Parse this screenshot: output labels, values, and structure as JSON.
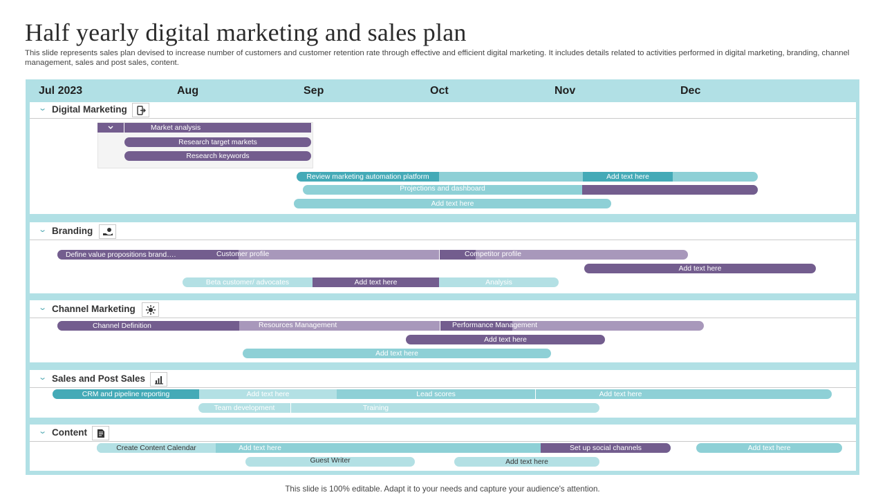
{
  "title": "Half yearly digital marketing and sales plan",
  "description": "This slide represents sales plan devised to increase number of customers and customer retention rate through effective and efficient digital marketing. It includes details related to activities performed in digital marketing, branding, channel management, sales and post sales, content.",
  "months": [
    "Jul 2023",
    "Aug",
    "Sep",
    "Oct",
    "Nov",
    "Dec"
  ],
  "sections": {
    "digital": {
      "title": "Digital Marketing",
      "icon": "phone-exit-icon",
      "market_analysis": "Market analysis",
      "research_target_markets": "Research target markets",
      "research_keywords": "Research keywords",
      "review_platform": "Review marketing automation platform",
      "add_text_1": "Add text here",
      "projections": "Projections and dashboard",
      "add_text_2": "Add text here"
    },
    "branding": {
      "title": "Branding",
      "icon": "hand-money-icon",
      "define_value": "Define value propositions brand….",
      "customer_profile": "Customer profile",
      "competitor_profile": "Competitor profile",
      "add_text_1": "Add text here",
      "beta_customer": "Beta customer/ advocates",
      "add_text_2": "Add text here",
      "analysis": "Analysis"
    },
    "channel": {
      "title": "Channel Marketing",
      "icon": "sun-gear-icon",
      "channel_definition": "Channel Definition",
      "resources_management": "Resources Management",
      "performance_management": "Performance Management",
      "add_text_1": "Add text here",
      "add_text_2": "Add text here"
    },
    "sales": {
      "title": "Sales and Post  Sales",
      "icon": "bar-chart-icon",
      "crm": "CRM  and pipeline reporting",
      "add_text_1": "Add text here",
      "lead_scores": "Lead scores",
      "add_text_2": "Add text here",
      "team_development": "Team development",
      "training": "Training"
    },
    "content": {
      "title": "Content",
      "icon": "document-icon",
      "calendar": "Create Content Calendar",
      "add_text_1": "Add text here",
      "social": "Set up social channels",
      "add_text_2": "Add text here",
      "guest_writer": "Guest Writer",
      "add_text_3": "Add text here"
    }
  },
  "colors": {
    "frame": "#b1e0e5",
    "purple": "#735d8e",
    "light_purple": "#a898bb",
    "teal": "#44aab7",
    "light_teal": "#8ed0d6",
    "pale_teal": "#b3e0e4"
  },
  "footer": "This slide is 100% editable. Adapt it to your needs and capture your audience's attention."
}
